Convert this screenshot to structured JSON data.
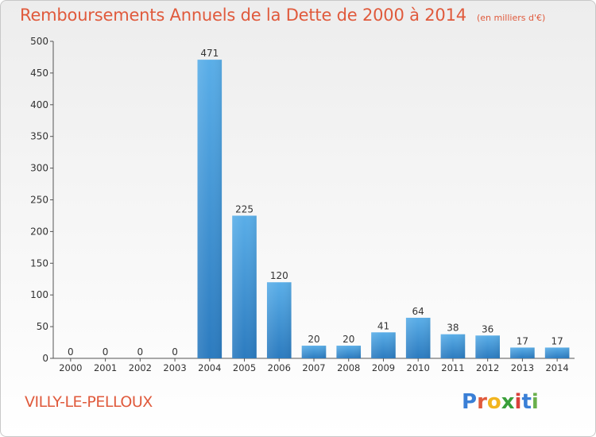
{
  "header": {
    "title": "Remboursements Annuels de la Dette de 2000 à 2014",
    "unit": "(en milliers d'€)"
  },
  "footer": {
    "commune": "VILLY-LE-PELLOUX",
    "logo_text": "Proxiti"
  },
  "colors": {
    "accent": "#e05a3c",
    "bar_top": "#5aaee8",
    "bar_bottom": "#2c7bbf"
  },
  "chart_data": {
    "type": "bar",
    "title": "Remboursements Annuels de la Dette de 2000 à 2014",
    "xlabel": "",
    "ylabel": "",
    "ylim": [
      0,
      500
    ],
    "yticks": [
      0,
      50,
      100,
      150,
      200,
      250,
      300,
      350,
      400,
      450,
      500
    ],
    "grid": false,
    "categories": [
      "2000",
      "2001",
      "2002",
      "2003",
      "2004",
      "2005",
      "2006",
      "2007",
      "2008",
      "2009",
      "2010",
      "2011",
      "2012",
      "2013",
      "2014"
    ],
    "values": [
      0,
      0,
      0,
      0,
      471,
      225,
      120,
      20,
      20,
      41,
      64,
      38,
      36,
      17,
      17
    ]
  }
}
